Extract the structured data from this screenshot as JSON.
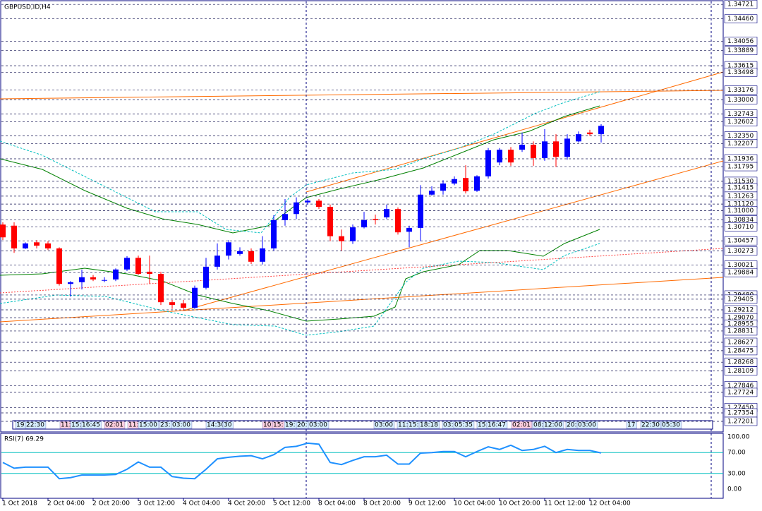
{
  "header": {
    "symbol": "GBPUSD,ID,H4"
  },
  "session_labels": [
    "19:",
    "22:30",
    "11:",
    "15:",
    "16:45",
    "02:01",
    "11:",
    "15:00",
    "23:",
    "03:00",
    "14:30",
    "30",
    "10:",
    "15:",
    "19:",
    "20:",
    "03:00",
    "03:00",
    "11:",
    "15:",
    "18:18",
    "03:",
    "05:35",
    "15:",
    "16:47",
    "02:01",
    "08:",
    "12:00",
    "20:",
    "03:00",
    "17",
    "22:30",
    "05:30"
  ],
  "chart_data": [
    {
      "type": "candlestick",
      "categories": [
        "1 Oct 2018",
        null,
        null,
        null,
        "2 Oct 04:00",
        null,
        null,
        null,
        "2 Oct 20:00",
        null,
        null,
        null,
        "3 Oct 12:00",
        null,
        null,
        null,
        "4 Oct 04:00",
        null,
        null,
        null,
        "4 Oct 20:00",
        null,
        null,
        null,
        "5 Oct 12:00",
        null,
        null,
        null,
        "8 Oct 04:00",
        null,
        null,
        null,
        "8 Oct 20:00",
        null,
        null,
        null,
        "9 Oct 12:00",
        null,
        null,
        null,
        "10 Oct 04:00",
        null,
        null,
        null,
        "10 Oct 20:00",
        null,
        null,
        null,
        "11 Oct 12:00",
        null,
        null,
        null,
        "12 Oct 04:00",
        null
      ],
      "open": [
        1.3075,
        1.3073,
        1.3032,
        1.3043,
        1.3041,
        1.3032,
        1.2968,
        1.2971,
        1.298,
        1.2975,
        1.2976,
        1.2994,
        1.3015,
        1.299,
        1.2986,
        1.2935,
        1.2933,
        1.2925,
        1.2961,
        1.2999,
        1.3019,
        1.3022,
        1.3027,
        1.3008,
        1.3032,
        1.3083,
        1.3094,
        1.3115,
        1.3118,
        1.3107,
        1.3054,
        1.3045,
        1.307,
        1.3085,
        1.3088,
        1.3103,
        1.3062,
        1.3069,
        1.3129,
        1.3136,
        1.3149,
        1.3159,
        1.3136,
        1.3162,
        1.3187,
        1.321,
        1.321,
        1.3219,
        1.3195,
        1.3225,
        1.3197,
        1.3225,
        1.3241,
        1.3238
      ],
      "close": [
        1.3052,
        1.3032,
        1.3041,
        1.3037,
        1.3032,
        1.2968,
        1.2971,
        1.298,
        1.2976,
        1.2975,
        1.2994,
        1.3015,
        1.2986,
        1.2986,
        1.2935,
        1.293,
        1.2925,
        1.2961,
        1.2999,
        1.3019,
        1.3043,
        1.3027,
        1.3008,
        1.3032,
        1.3083,
        1.3094,
        1.3115,
        1.3118,
        1.3107,
        1.3054,
        1.3045,
        1.307,
        1.3083,
        1.3083,
        1.3103,
        1.3061,
        1.3069,
        1.3129,
        1.3136,
        1.3149,
        1.3157,
        1.3135,
        1.3162,
        1.3209,
        1.321,
        1.3187,
        1.3219,
        1.3195,
        1.3225,
        1.3197,
        1.323,
        1.3238,
        1.3238,
        1.3253
      ],
      "high": [
        1.3079,
        1.3079,
        1.3043,
        1.3047,
        1.3045,
        1.3034,
        1.2973,
        1.2994,
        1.2984,
        1.298,
        1.2996,
        1.3018,
        1.3019,
        1.3019,
        1.299,
        1.2939,
        1.2939,
        1.2965,
        1.3015,
        1.3041,
        1.3047,
        1.3034,
        1.3032,
        1.3054,
        1.3092,
        1.3121,
        1.3124,
        1.3121,
        1.3121,
        1.3111,
        1.3066,
        1.3075,
        1.3098,
        1.3093,
        1.3111,
        1.3106,
        1.3073,
        1.3146,
        1.3144,
        1.3155,
        1.3162,
        1.3182,
        1.3164,
        1.3213,
        1.3213,
        1.3215,
        1.3241,
        1.3225,
        1.3247,
        1.3238,
        1.3238,
        1.3243,
        1.3246,
        1.3256
      ],
      "low": [
        1.3047,
        1.3024,
        1.3031,
        1.3032,
        1.3029,
        1.2965,
        1.2945,
        1.2958,
        1.2973,
        1.2971,
        1.2973,
        1.2991,
        1.2984,
        1.2968,
        1.293,
        1.2923,
        1.292,
        1.2923,
        1.2958,
        1.2994,
        1.3012,
        1.3019,
        1.3004,
        1.3003,
        1.3028,
        1.3073,
        1.3085,
        1.3111,
        1.3103,
        1.3045,
        1.3028,
        1.304,
        1.3068,
        1.3075,
        1.3085,
        1.3057,
        1.3034,
        1.3045,
        1.3127,
        1.3129,
        1.3146,
        1.3131,
        1.3134,
        1.3158,
        1.3182,
        1.3181,
        1.3206,
        1.3181,
        1.319,
        1.3179,
        1.3192,
        1.3223,
        1.3235,
        1.3223
      ],
      "up_color": "#0000ff",
      "down_color": "#ff0000",
      "ylim": [
        1.2701,
        1.348
      ],
      "yticks": [
        1.34721,
        {
          "value": 1.3446,
          "label": "1.34460"
        },
        1.34056,
        1.33889,
        1.33615,
        1.33498,
        1.33176,
        {
          "value": 1.33,
          "label": "1.33000"
        },
        1.32743,
        1.32602,
        {
          "value": 1.3235,
          "label": "1.32350"
        },
        1.32207,
        1.31936,
        1.31795,
        {
          "value": 1.3153,
          "label": "1.31530"
        },
        1.31415,
        1.31263,
        {
          "value": 1.3112,
          "label": "1.31120"
        },
        {
          "value": 1.31,
          "label": "1.31000"
        },
        1.30834,
        {
          "value": 1.3071,
          "label": "1.30710"
        },
        1.30457,
        1.30273,
        1.30021,
        1.29884,
        {
          "value": 1.2948,
          "label": "1.29480"
        },
        1.29405,
        1.29212,
        {
          "value": 1.2907,
          "label": "1.29070"
        },
        1.28955,
        1.28831,
        1.28627,
        1.28475,
        1.28268,
        1.28109,
        1.27846,
        1.27724,
        {
          "value": 1.2745,
          "label": "1.27450"
        },
        1.27354,
        1.27201
      ],
      "grid": true
    },
    {
      "type": "line",
      "title": "RSI(7) 69.29",
      "color": "#1e90ff",
      "values": [
        51,
        40,
        42,
        42,
        42,
        20,
        22,
        27,
        27,
        27,
        28,
        38,
        52,
        42,
        42,
        24,
        21,
        20,
        38,
        58,
        61,
        63,
        64,
        58,
        66,
        80,
        82,
        88,
        86,
        51,
        47,
        55,
        62,
        62,
        65,
        48,
        48,
        69,
        70,
        72,
        72,
        62,
        72,
        81,
        76,
        84,
        74,
        76,
        82,
        70,
        76,
        74,
        74,
        69.29
      ],
      "ylim": [
        -17.6,
        106.8
      ],
      "yticks": [
        {
          "value": 100,
          "label": "100.00"
        },
        {
          "value": 70,
          "label": "70.00"
        },
        {
          "value": 30,
          "label": "30.00"
        },
        {
          "value": 0,
          "label": "0.00"
        }
      ]
    }
  ]
}
